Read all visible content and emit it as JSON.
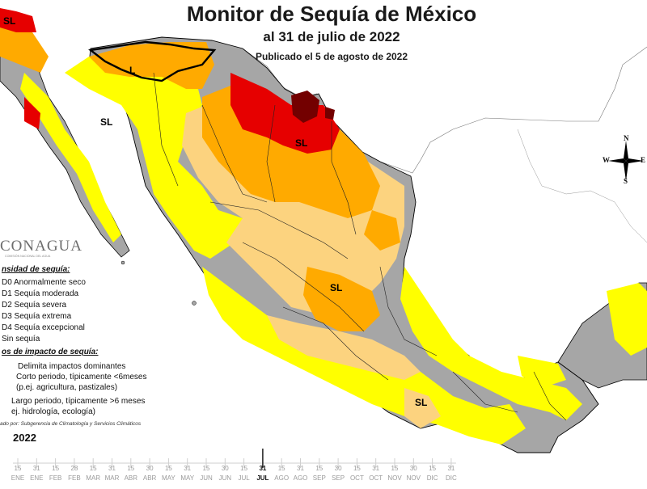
{
  "header": {
    "title": "Monitor de Sequía de México",
    "subtitle": "al 31 de julio de 2022",
    "published": "Publicado el 5 de agosto de 2022"
  },
  "branding": {
    "logo_text": "CONAGUA",
    "logo_subtext": "COMISIÓN NACIONAL DEL AGUA"
  },
  "legend": {
    "intensity_header": "nsidad de sequía:",
    "levels": [
      {
        "label": "D0 Anormalmente seco",
        "color": "#ffff00"
      },
      {
        "label": "D1 Sequía moderada",
        "color": "#fcd37f"
      },
      {
        "label": "D2 Sequía severa",
        "color": "#ffaa00"
      },
      {
        "label": "D3 Sequía extrema",
        "color": "#e60000"
      },
      {
        "label": "D4 Sequía excepcional",
        "color": "#730000"
      },
      {
        "label": "Sin sequía",
        "color": "#ffffff"
      }
    ],
    "impact_header": "os de impacto de sequía:",
    "impacts": [
      "Delimita impactos dominantes",
      "Corto periodo, típicamente <6meses",
      "(p.ej. agricultura, pastizales)",
      "Largo periodo, típicamente >6 meses",
      "ej. hidrología, ecología)"
    ],
    "credit": "ado por: Subgerencia de Climatología y Servicios Climáticos"
  },
  "map_labels": {
    "sl_top_left": "SL",
    "l_sonora": "L",
    "sl_baja": "SL",
    "sl_north": "SL",
    "sl_center": "SL",
    "sl_south": "SL"
  },
  "compass": {
    "n": "N",
    "s": "S",
    "e": "E",
    "w": "W"
  },
  "colors": {
    "no_drought": "#a6a6a6",
    "d0": "#ffff00",
    "d1": "#fcd37f",
    "d2": "#ffaa00",
    "d3": "#e60000",
    "d4": "#730000",
    "border": "#000000",
    "land_outside": "#ffffff"
  },
  "timeline": {
    "year": "2022",
    "ticks": [
      "15",
      "31",
      "15",
      "28",
      "15",
      "31",
      "15",
      "30",
      "15",
      "31",
      "15",
      "30",
      "15",
      "31",
      "15",
      "31",
      "15",
      "30",
      "15",
      "31",
      "15",
      "30",
      "15",
      "31"
    ],
    "months": [
      "ENE",
      "ENE",
      "FEB",
      "FEB",
      "MAR",
      "MAR",
      "ABR",
      "ABR",
      "MAY",
      "MAY",
      "JUN",
      "JUN",
      "JUL",
      "JUL",
      "AGO",
      "AGO",
      "SEP",
      "SEP",
      "OCT",
      "OCT",
      "NOV",
      "NOV",
      "DIC",
      "DIC"
    ],
    "current_index": 13,
    "current_tick": "31",
    "current_month": "JUL"
  }
}
